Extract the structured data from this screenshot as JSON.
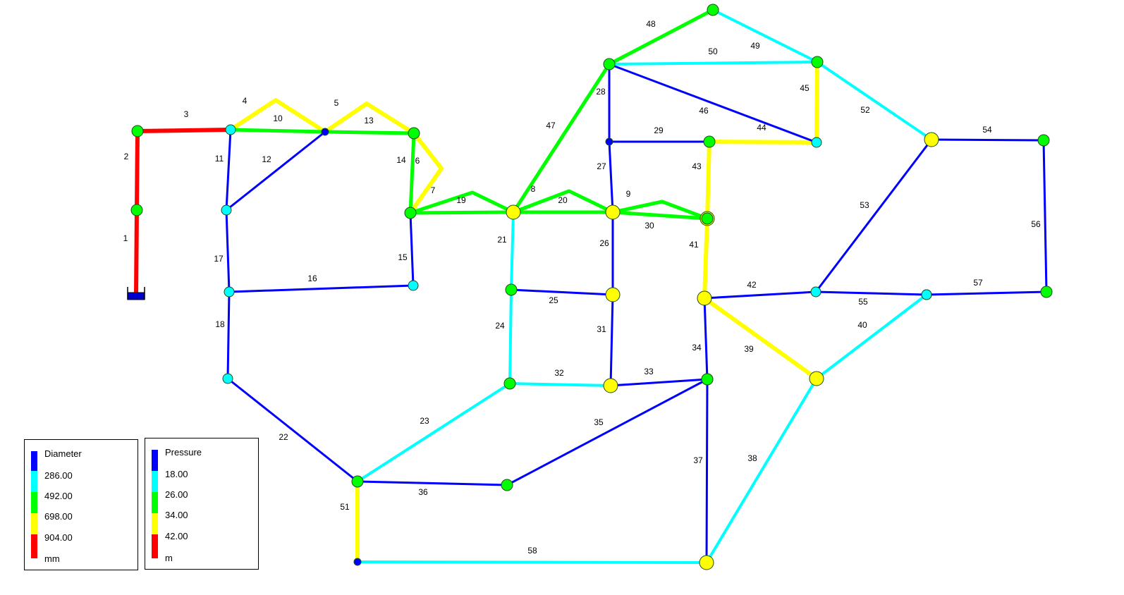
{
  "colors": {
    "blue": "#0000ff",
    "cyan": "#00ffff",
    "green": "#00ff00",
    "yellow": "#ffff00",
    "red": "#ff0000",
    "node_stroke": "#1a4a1a",
    "tank": "#0000cc"
  },
  "legends": {
    "diameter": {
      "title": "Diameter",
      "values": [
        "286.00",
        "492.00",
        "698.00",
        "904.00"
      ],
      "unit": "mm"
    },
    "pressure": {
      "title": "Pressure",
      "values": [
        "18.00",
        "26.00",
        "34.00",
        "42.00"
      ],
      "unit": "m"
    }
  },
  "nodes": [
    {
      "id": "reservoir",
      "pressure": "tank"
    },
    {
      "id": "n2",
      "pressure": "green"
    },
    {
      "id": "n3",
      "pressure": "green"
    },
    {
      "id": "n4",
      "pressure": "cyan"
    },
    {
      "id": "n5",
      "pressure": "blue"
    },
    {
      "id": "n6",
      "pressure": "green"
    },
    {
      "id": "n7",
      "pressure": "cyan"
    },
    {
      "id": "n8",
      "pressure": "green"
    },
    {
      "id": "n9",
      "pressure": "cyan"
    },
    {
      "id": "n10",
      "pressure": "cyan"
    },
    {
      "id": "n11",
      "pressure": "cyan"
    },
    {
      "id": "n12",
      "pressure": "green"
    },
    {
      "id": "n13",
      "pressure": "yellow"
    },
    {
      "id": "n14",
      "pressure": "green"
    },
    {
      "id": "n15",
      "pressure": "green"
    },
    {
      "id": "n16",
      "pressure": "green"
    },
    {
      "id": "n17",
      "pressure": "blue"
    },
    {
      "id": "n18",
      "pressure": "yellow"
    },
    {
      "id": "n19",
      "pressure": "yellow"
    },
    {
      "id": "n20",
      "pressure": "yellow"
    },
    {
      "id": "n21",
      "pressure": "green"
    },
    {
      "id": "n22",
      "pressure": "cyan"
    },
    {
      "id": "n23",
      "pressure": "green"
    },
    {
      "id": "n24",
      "pressure": "green"
    },
    {
      "id": "n25",
      "pressure": "yellow"
    },
    {
      "id": "n26",
      "pressure": "green"
    },
    {
      "id": "n27",
      "pressure": "cyan"
    },
    {
      "id": "n28",
      "pressure": "cyan"
    },
    {
      "id": "n29",
      "pressure": "yellow"
    },
    {
      "id": "n30",
      "pressure": "green"
    },
    {
      "id": "n31",
      "pressure": "cyan"
    },
    {
      "id": "n32",
      "pressure": "green"
    },
    {
      "id": "n33",
      "pressure": "yellow"
    },
    {
      "id": "n34",
      "pressure": "yellow"
    },
    {
      "id": "n35",
      "pressure": "green"
    },
    {
      "id": "n36",
      "pressure": "green"
    },
    {
      "id": "n37",
      "pressure": "green"
    },
    {
      "id": "n38",
      "pressure": "blue"
    },
    {
      "id": "n39",
      "pressure": "yellow"
    }
  ],
  "pipes": [
    {
      "label": "1",
      "from": "reservoir",
      "to": "n2",
      "diameter": "red"
    },
    {
      "label": "2",
      "from": "n2",
      "to": "n3",
      "diameter": "red"
    },
    {
      "label": "3",
      "from": "n3",
      "to": "n4",
      "diameter": "red"
    },
    {
      "label": "4",
      "from": "n4",
      "to": "n5",
      "diameter": "yellow",
      "bend": [
        391,
        142
      ]
    },
    {
      "label": "10",
      "from": "n4",
      "to": "n5",
      "diameter": "green"
    },
    {
      "label": "5",
      "from": "n5",
      "to": "n6",
      "diameter": "yellow",
      "bend": [
        520,
        147
      ]
    },
    {
      "label": "13",
      "from": "n5",
      "to": "n6",
      "diameter": "green"
    },
    {
      "label": "11",
      "from": "n4",
      "to": "n7",
      "diameter": "blue"
    },
    {
      "label": "12",
      "from": "n7",
      "to": "n5",
      "diameter": "blue"
    },
    {
      "label": "14",
      "from": "n6",
      "to": "n8",
      "diameter": "green"
    },
    {
      "label": "6",
      "from": "n6",
      "to": "n8",
      "diameter": "yellow",
      "bend": [
        626,
        239
      ]
    },
    {
      "label": "15",
      "from": "n8",
      "to": "n9",
      "diameter": "blue"
    },
    {
      "label": "16",
      "from": "n10",
      "to": "n9",
      "diameter": "blue"
    },
    {
      "label": "17",
      "from": "n7",
      "to": "n10",
      "diameter": "blue"
    },
    {
      "label": "18",
      "from": "n10",
      "to": "n11",
      "diameter": "blue"
    },
    {
      "label": "19",
      "from": "n8",
      "to": "n13",
      "diameter": "green",
      "bend": [
        670,
        273
      ]
    },
    {
      "label": "7",
      "from": "n8",
      "to": "n13",
      "diameter": "green"
    },
    {
      "label": "20",
      "from": "n13",
      "to": "n18",
      "diameter": "green",
      "bend": [
        807,
        271
      ]
    },
    {
      "label": "8",
      "from": "n13",
      "to": "n18",
      "diameter": "green"
    },
    {
      "label": "30",
      "from": "n18",
      "to": "n20",
      "diameter": "green",
      "bend": [
        939,
        286
      ]
    },
    {
      "label": "9",
      "from": "n18",
      "to": "n20",
      "diameter": "green"
    },
    {
      "label": "21",
      "from": "n13",
      "to": "n14",
      "diameter": "cyan"
    },
    {
      "label": "24",
      "from": "n14",
      "to": "n15",
      "diameter": "cyan"
    },
    {
      "label": "25",
      "from": "n14",
      "to": "n19",
      "diameter": "blue"
    },
    {
      "label": "26",
      "from": "n18",
      "to": "n19",
      "diameter": "blue"
    },
    {
      "label": "31",
      "from": "n19",
      "to": "n25",
      "diameter": "blue"
    },
    {
      "label": "32",
      "from": "n15",
      "to": "n25",
      "diameter": "cyan"
    },
    {
      "label": "33",
      "from": "n25",
      "to": "n26",
      "diameter": "blue"
    },
    {
      "label": "22",
      "from": "n11",
      "to": "n12",
      "diameter": "blue"
    },
    {
      "label": "23",
      "from": "n12",
      "to": "n15",
      "diameter": "cyan"
    },
    {
      "label": "36",
      "from": "n12",
      "to": "n24",
      "diameter": "blue"
    },
    {
      "label": "35",
      "from": "n24",
      "to": "n26",
      "diameter": "blue"
    },
    {
      "label": "51",
      "from": "n12",
      "to": "n38",
      "diameter": "yellow"
    },
    {
      "label": "58",
      "from": "n38",
      "to": "n39",
      "diameter": "cyan"
    },
    {
      "label": "37",
      "from": "n26",
      "to": "n39",
      "diameter": "blue"
    },
    {
      "label": "38",
      "from": "n39",
      "to": "n34",
      "diameter": "cyan"
    },
    {
      "label": "34",
      "from": "n29",
      "to": "n26",
      "diameter": "blue"
    },
    {
      "label": "41",
      "from": "n20",
      "to": "n29",
      "diameter": "yellow"
    },
    {
      "label": "43",
      "from": "n21",
      "to": "n20",
      "diameter": "yellow"
    },
    {
      "label": "44",
      "from": "n21",
      "to": "n22",
      "diameter": "yellow"
    },
    {
      "label": "29",
      "from": "n17",
      "to": "n21",
      "diameter": "blue"
    },
    {
      "label": "27",
      "from": "n17",
      "to": "n18",
      "diameter": "blue"
    },
    {
      "label": "28",
      "from": "n16",
      "to": "n17",
      "diameter": "blue"
    },
    {
      "label": "46",
      "from": "n16",
      "to": "n22",
      "diameter": "blue"
    },
    {
      "label": "47",
      "from": "n13",
      "to": "n16",
      "diameter": "green"
    },
    {
      "label": "48",
      "from": "n16",
      "to": "n23",
      "diameter": "green"
    },
    {
      "label": "49",
      "from": "n23",
      "to": "n32",
      "diameter": "cyan"
    },
    {
      "label": "50",
      "from": "n16",
      "to": "n32",
      "diameter": "cyan"
    },
    {
      "label": "45",
      "from": "n32",
      "to": "n22",
      "diameter": "yellow"
    },
    {
      "label": "52",
      "from": "n32",
      "to": "n33",
      "diameter": "cyan"
    },
    {
      "label": "54",
      "from": "n33",
      "to": "n36",
      "diameter": "blue"
    },
    {
      "label": "56",
      "from": "n36",
      "to": "n37",
      "diameter": "blue"
    },
    {
      "label": "57",
      "from": "n31",
      "to": "n37",
      "diameter": "blue"
    },
    {
      "label": "53",
      "from": "n27",
      "to": "n33",
      "diameter": "blue"
    },
    {
      "label": "42",
      "from": "n29",
      "to": "n27",
      "diameter": "blue"
    },
    {
      "label": "55",
      "from": "n27",
      "to": "n31",
      "diameter": "blue"
    },
    {
      "label": "39",
      "from": "n29",
      "to": "n34",
      "diameter": "yellow"
    },
    {
      "label": "40",
      "from": "n34",
      "to": "n31",
      "diameter": "cyan"
    }
  ]
}
